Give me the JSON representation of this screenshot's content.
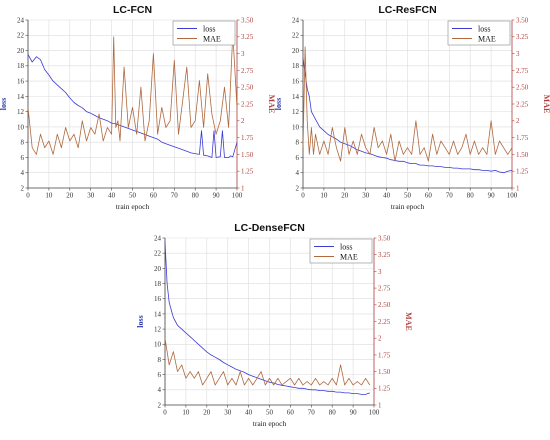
{
  "colors": {
    "loss": "#3a3ad6",
    "mae": "#b0683e",
    "right_axis": "#b0413e",
    "grid": "#dcdcdc"
  },
  "chart_data": [
    {
      "type": "line",
      "title": "LC-FCN",
      "xlabel": "train epoch",
      "ylabel": "loss",
      "y2label": "MAE",
      "xlim": [
        0,
        100
      ],
      "ylim": [
        2,
        24
      ],
      "y2lim": [
        1.0,
        3.5
      ],
      "xticks": [
        0,
        10,
        20,
        30,
        40,
        50,
        60,
        70,
        80,
        90,
        100
      ],
      "yticks": [
        2,
        4,
        6,
        8,
        10,
        12,
        14,
        16,
        18,
        20,
        22,
        24
      ],
      "y2ticks": [
        1.0,
        1.25,
        1.5,
        1.75,
        2.0,
        2.25,
        2.5,
        2.75,
        3.0,
        3.25,
        3.5
      ],
      "grid": true,
      "legend_position": "top-right",
      "series": [
        {
          "name": "loss",
          "axis": "left",
          "x": [
            0,
            2,
            4,
            6,
            8,
            10,
            12,
            14,
            16,
            18,
            20,
            22,
            24,
            26,
            28,
            30,
            32,
            34,
            36,
            38,
            40,
            42,
            44,
            46,
            48,
            50,
            52,
            54,
            56,
            58,
            60,
            62,
            64,
            66,
            68,
            70,
            72,
            74,
            76,
            78,
            80,
            82,
            83,
            84,
            86,
            88,
            89,
            90,
            92,
            93,
            94,
            96,
            97,
            98,
            100
          ],
          "y": [
            19.5,
            18.5,
            19.2,
            18.8,
            17.5,
            16.8,
            16.0,
            15.5,
            15.0,
            14.5,
            13.8,
            13.2,
            12.8,
            12.5,
            12.0,
            11.8,
            11.5,
            11.2,
            11.0,
            10.8,
            10.5,
            10.4,
            10.2,
            10.0,
            9.8,
            9.6,
            9.4,
            9.2,
            9.0,
            8.8,
            8.6,
            8.4,
            8.0,
            7.8,
            7.6,
            7.4,
            7.2,
            7.0,
            6.8,
            6.6,
            6.5,
            6.4,
            9.5,
            6.3,
            6.2,
            6.0,
            9.5,
            6.0,
            6.1,
            9.5,
            6.0,
            6.0,
            6.2,
            6.1,
            8.0
          ]
        },
        {
          "name": "MAE",
          "axis": "right",
          "x": [
            0,
            2,
            4,
            6,
            8,
            10,
            12,
            14,
            16,
            18,
            20,
            22,
            24,
            26,
            28,
            30,
            32,
            34,
            36,
            38,
            40,
            41,
            42,
            43,
            44,
            46,
            48,
            50,
            52,
            54,
            56,
            58,
            60,
            62,
            64,
            66,
            68,
            70,
            72,
            74,
            76,
            78,
            80,
            82,
            84,
            86,
            88,
            90,
            92,
            94,
            96,
            98,
            100
          ],
          "y": [
            2.2,
            1.6,
            1.5,
            1.8,
            1.6,
            1.7,
            1.5,
            1.8,
            1.6,
            1.9,
            1.7,
            1.8,
            1.6,
            2.0,
            1.7,
            1.9,
            1.8,
            2.1,
            1.7,
            1.9,
            1.8,
            3.25,
            1.9,
            2.0,
            1.7,
            2.8,
            1.9,
            2.2,
            1.8,
            2.5,
            1.7,
            2.0,
            3.0,
            1.8,
            2.2,
            1.9,
            2.0,
            2.9,
            1.8,
            2.3,
            2.8,
            1.9,
            2.0,
            2.6,
            1.9,
            2.7,
            2.1,
            1.8,
            2.0,
            2.5,
            1.9,
            3.3,
            2.2
          ]
        }
      ]
    },
    {
      "type": "line",
      "title": "LC-ResFCN",
      "xlabel": "train epoch",
      "ylabel": "loss",
      "y2label": "MAE",
      "xlim": [
        0,
        100
      ],
      "ylim": [
        2,
        24
      ],
      "y2lim": [
        1.0,
        3.5
      ],
      "xticks": [
        0,
        10,
        20,
        30,
        40,
        50,
        60,
        70,
        80,
        90,
        100
      ],
      "yticks": [
        2,
        4,
        6,
        8,
        10,
        12,
        14,
        16,
        18,
        20,
        22,
        24
      ],
      "y2ticks": [
        1.0,
        1.25,
        1.5,
        1.75,
        2.0,
        2.25,
        2.5,
        2.75,
        3.0,
        3.25,
        3.5
      ],
      "grid": true,
      "legend_position": "top-right",
      "series": [
        {
          "name": "loss",
          "axis": "left",
          "x": [
            0,
            1,
            2,
            3,
            4,
            6,
            8,
            10,
            12,
            14,
            16,
            18,
            20,
            22,
            24,
            26,
            28,
            30,
            32,
            34,
            36,
            38,
            40,
            42,
            44,
            46,
            48,
            50,
            52,
            54,
            56,
            58,
            60,
            62,
            64,
            66,
            68,
            70,
            72,
            74,
            76,
            78,
            80,
            82,
            84,
            86,
            88,
            90,
            92,
            94,
            96,
            98,
            100
          ],
          "y": [
            19.0,
            17.0,
            15.0,
            14.0,
            12.0,
            11.0,
            10.0,
            9.5,
            9.0,
            8.7,
            8.4,
            8.0,
            7.8,
            7.6,
            7.3,
            7.0,
            6.8,
            6.6,
            6.5,
            6.3,
            6.1,
            6.0,
            5.9,
            5.7,
            5.6,
            5.5,
            5.5,
            5.3,
            5.2,
            5.2,
            5.0,
            5.0,
            4.9,
            4.9,
            4.8,
            4.8,
            4.7,
            4.7,
            4.6,
            4.6,
            4.5,
            4.5,
            4.5,
            4.4,
            4.4,
            4.3,
            4.3,
            4.2,
            4.3,
            4.1,
            4.0,
            4.2,
            4.3
          ]
        },
        {
          "name": "MAE",
          "axis": "right",
          "x": [
            0,
            1,
            2,
            3,
            4,
            5,
            6,
            8,
            10,
            12,
            14,
            16,
            18,
            20,
            22,
            24,
            26,
            28,
            30,
            32,
            34,
            36,
            38,
            40,
            42,
            44,
            46,
            48,
            50,
            52,
            54,
            56,
            58,
            60,
            62,
            64,
            66,
            68,
            70,
            72,
            74,
            76,
            78,
            80,
            82,
            84,
            86,
            88,
            90,
            92,
            94,
            96,
            98,
            100
          ],
          "y": [
            1.6,
            3.1,
            2.0,
            1.5,
            1.9,
            1.5,
            1.8,
            1.5,
            1.7,
            1.5,
            1.9,
            1.6,
            1.4,
            1.9,
            1.5,
            1.7,
            1.5,
            1.8,
            1.6,
            1.5,
            1.9,
            1.6,
            1.7,
            1.5,
            1.8,
            1.4,
            1.7,
            1.5,
            1.6,
            1.5,
            2.0,
            1.5,
            1.6,
            1.4,
            1.8,
            1.5,
            1.7,
            1.6,
            1.5,
            1.7,
            1.5,
            1.6,
            1.8,
            1.5,
            1.7,
            1.5,
            1.6,
            1.5,
            2.0,
            1.5,
            1.7,
            1.6,
            1.5,
            1.6
          ]
        }
      ]
    },
    {
      "type": "line",
      "title": "LC-DenseFCN",
      "xlabel": "train epoch",
      "ylabel": "loss",
      "y2label": "MAE",
      "xlim": [
        0,
        100
      ],
      "ylim": [
        2,
        24
      ],
      "y2lim": [
        1.0,
        3.5
      ],
      "xticks": [
        0,
        10,
        20,
        30,
        40,
        50,
        60,
        70,
        80,
        90,
        100
      ],
      "yticks": [
        2,
        4,
        6,
        8,
        10,
        12,
        14,
        16,
        18,
        20,
        22,
        24
      ],
      "y2ticks": [
        1.0,
        1.25,
        1.5,
        1.75,
        2.0,
        2.25,
        2.5,
        2.75,
        3.0,
        3.25,
        3.5
      ],
      "grid": true,
      "legend_position": "top-right",
      "series": [
        {
          "name": "loss",
          "axis": "left",
          "x": [
            0,
            1,
            2,
            3,
            4,
            5,
            6,
            8,
            10,
            12,
            14,
            16,
            18,
            20,
            22,
            24,
            26,
            28,
            30,
            32,
            34,
            36,
            38,
            40,
            42,
            44,
            46,
            48,
            50,
            52,
            54,
            56,
            58,
            60,
            62,
            64,
            66,
            68,
            70,
            72,
            74,
            76,
            78,
            80,
            82,
            84,
            86,
            88,
            90,
            92,
            94,
            96,
            98
          ],
          "y": [
            23.5,
            18.0,
            15.5,
            14.5,
            13.5,
            13.0,
            12.5,
            12.0,
            11.5,
            11.0,
            10.5,
            10.0,
            9.5,
            9.0,
            8.6,
            8.3,
            8.0,
            7.6,
            7.3,
            7.0,
            6.7,
            6.5,
            6.3,
            6.0,
            5.8,
            5.6,
            5.4,
            5.2,
            5.0,
            4.9,
            4.7,
            4.6,
            4.5,
            4.4,
            4.3,
            4.2,
            4.2,
            4.1,
            4.0,
            4.0,
            3.9,
            3.9,
            3.8,
            3.8,
            3.7,
            3.7,
            3.6,
            3.6,
            3.5,
            3.5,
            3.4,
            3.4,
            3.6
          ]
        },
        {
          "name": "MAE",
          "axis": "right",
          "x": [
            0,
            2,
            4,
            6,
            8,
            10,
            12,
            14,
            16,
            18,
            20,
            22,
            24,
            26,
            28,
            30,
            32,
            34,
            36,
            38,
            40,
            42,
            44,
            46,
            48,
            50,
            52,
            54,
            56,
            58,
            60,
            62,
            64,
            66,
            68,
            70,
            72,
            74,
            76,
            78,
            80,
            82,
            84,
            86,
            88,
            90,
            92,
            94,
            96,
            98
          ],
          "y": [
            2.0,
            1.6,
            1.8,
            1.5,
            1.6,
            1.4,
            1.5,
            1.4,
            1.5,
            1.3,
            1.4,
            1.5,
            1.3,
            1.4,
            1.5,
            1.3,
            1.4,
            1.3,
            1.5,
            1.3,
            1.4,
            1.3,
            1.4,
            1.5,
            1.3,
            1.4,
            1.3,
            1.4,
            1.3,
            1.35,
            1.4,
            1.3,
            1.4,
            1.3,
            1.35,
            1.3,
            1.4,
            1.3,
            1.35,
            1.3,
            1.4,
            1.3,
            1.6,
            1.3,
            1.4,
            1.3,
            1.35,
            1.3,
            1.4,
            1.3
          ]
        }
      ]
    }
  ]
}
